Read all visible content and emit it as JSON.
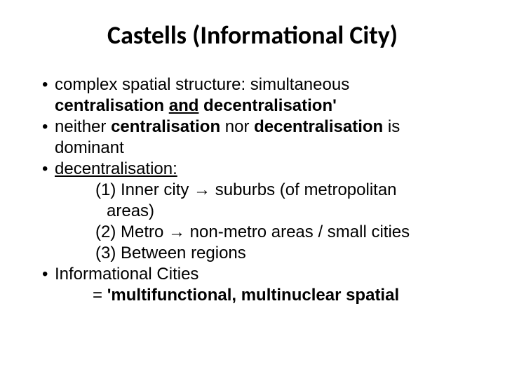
{
  "title": "Castells (Informational City)",
  "bullets": {
    "b1_dot": "•",
    "b1_a": " complex spatial structure: simultaneous",
    "b1_cont_a": " centralisation ",
    "b1_cont_b": "and",
    "b1_cont_c": " decentralisation'",
    "b2_dot": "•",
    "b2_a": " neither ",
    "b2_b": "centralisation",
    "b2_c": " nor ",
    "b2_d": "decentralisation ",
    "b2_e": "is",
    "b2_cont": " dominant",
    "b3_dot": "•",
    "b3_a": " decentralisation:",
    "s1_a": "(1) Inner city ",
    "arrow": "→",
    "s1_b": " suburbs (of metropolitan",
    "s1_cont": " areas)",
    "s2_a": "(2) Metro ",
    "s2_b": " non-metro areas / small cities",
    "s3": "(3) Between regions",
    "b4_dot": "•",
    "b4_a": " Informational Cities",
    "eq_a": "=  ",
    "eq_b": "'multifunctional, multinuclear spatial "
  }
}
